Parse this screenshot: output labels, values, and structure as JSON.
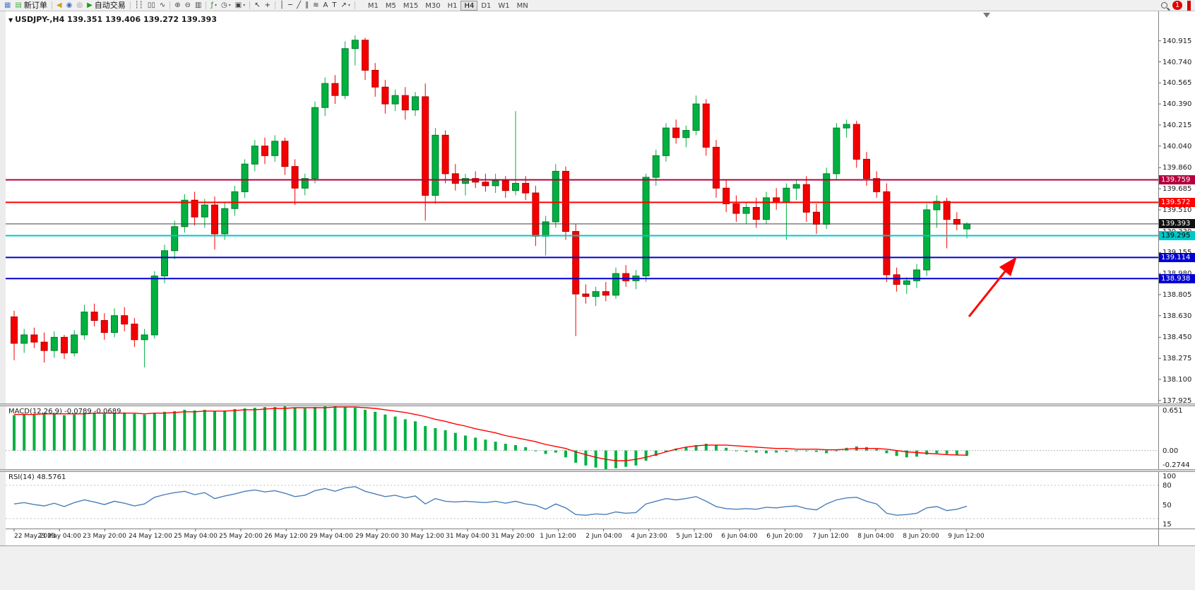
{
  "toolbar": {
    "notification_count": "1",
    "active_timeframe": "H4",
    "timeframes": [
      "M1",
      "M5",
      "M15",
      "M30",
      "H1",
      "H4",
      "D1",
      "W1",
      "MN"
    ],
    "items": [
      {
        "name": "new-chart-icon",
        "glyph": "▦",
        "color": "#4f7fbf"
      },
      {
        "name": "new-order-button",
        "glyph": "▤",
        "color": "#3fae49",
        "label": "新订单"
      },
      {
        "sep": true
      },
      {
        "name": "news-horn-icon",
        "glyph": "◀",
        "color": "#d4a017"
      },
      {
        "name": "community-icon",
        "glyph": "◉",
        "color": "#3a6fc3"
      },
      {
        "name": "support-icon",
        "glyph": "◎",
        "color": "#8a8a8a"
      },
      {
        "name": "auto-trading-button",
        "glyph": "▶",
        "color": "#15a015",
        "label": "自动交易"
      },
      {
        "sep": true
      },
      {
        "name": "bar-chart-icon",
        "glyph": "┆┆",
        "color": "#444444"
      },
      {
        "name": "candlestick-chart-icon",
        "glyph": "▯▯",
        "color": "#444444"
      },
      {
        "name": "line-chart-icon",
        "glyph": "∿",
        "color": "#444444"
      },
      {
        "sep": true
      },
      {
        "name": "zoom-in-icon",
        "glyph": "⊕",
        "color": "#444444"
      },
      {
        "name": "zoom-out-icon",
        "glyph": "⊖",
        "color": "#444444"
      },
      {
        "name": "tile-windows-icon",
        "glyph": "▥",
        "color": "#444444"
      },
      {
        "sep": true
      },
      {
        "name": "indicators-icon",
        "glyph": "ƒ",
        "color": "#2e8b2e",
        "caret": true
      },
      {
        "name": "periods-icon",
        "glyph": "◷",
        "color": "#444444",
        "caret": true
      },
      {
        "name": "template-icon",
        "glyph": "▣",
        "color": "#444444",
        "caret": true
      },
      {
        "sep": true
      },
      {
        "name": "cursor-icon",
        "glyph": "↖",
        "color": "#333333"
      },
      {
        "name": "crosshair-icon",
        "glyph": "+",
        "color": "#333333"
      },
      {
        "sep": true
      },
      {
        "name": "vertical-line-icon",
        "glyph": "│",
        "color": "#333333"
      },
      {
        "name": "horizontal-line-icon",
        "glyph": "─",
        "color": "#333333"
      },
      {
        "name": "trendline-icon",
        "glyph": "╱",
        "color": "#333333"
      },
      {
        "name": "channel-icon",
        "glyph": "∥",
        "color": "#333333"
      },
      {
        "name": "fibonacci-icon",
        "glyph": "≋",
        "color": "#333333"
      },
      {
        "name": "text-icon",
        "glyph": "A",
        "color": "#333333"
      },
      {
        "name": "label-icon",
        "glyph": "T",
        "color": "#333333"
      },
      {
        "name": "arrows-icon",
        "glyph": "↗",
        "color": "#333333",
        "caret": true
      },
      {
        "sep": true
      }
    ]
  },
  "chart": {
    "symbol_caret": "▼",
    "symbol_line": "USDJPY-,H4 139.351 139.406 139.272 139.393",
    "bid": {
      "value": 139.393,
      "label": "139.393",
      "box_color": "#111111",
      "text": "#ffffff",
      "line_color": "#404040"
    },
    "hlines": [
      {
        "value": 139.759,
        "label": "139.759",
        "color": "#b4003c",
        "text": "#ffffff"
      },
      {
        "value": 139.572,
        "label": "139.572",
        "color": "#ff0000",
        "text": "#ffffff"
      },
      {
        "value": 139.295,
        "label": "139.295",
        "color": "#00c8c8",
        "text": "#000000"
      },
      {
        "value": 139.114,
        "label": "139.114",
        "color": "#0000d2",
        "text": "#ffffff"
      },
      {
        "value": 138.938,
        "label": "138.938",
        "color": "#0000d2",
        "text": "#ffffff"
      }
    ],
    "price_axis_labels": [
      "140.915",
      "140.740",
      "140.565",
      "140.390",
      "140.215",
      "140.040",
      "139.860",
      "139.685",
      "139.510",
      "139.330",
      "139.155",
      "138.980",
      "138.805",
      "138.630",
      "138.450",
      "138.275",
      "138.100",
      "137.925"
    ],
    "macd": {
      "title": "MACD(12,26,9) -0.0789 -0.0689",
      "max": 0.651,
      "min": -0.2744,
      "axis": [
        {
          "label": "0.651",
          "value": 0.651
        },
        {
          "label": "0.00",
          "value": 0
        },
        {
          "label": "-0.2744",
          "value": -0.2744
        }
      ]
    },
    "rsi": {
      "title": "RSI(14) 48.5761",
      "max": 100,
      "min": 15,
      "levels": [
        80,
        30
      ],
      "axis": [
        {
          "label": "100",
          "value": 100
        },
        {
          "label": "80",
          "value": 80
        },
        {
          "label": "50",
          "value": 50
        },
        {
          "label": "15",
          "value": 15
        }
      ]
    },
    "annotations": [
      {
        "type": "arrow",
        "color": "#ff0000"
      }
    ]
  },
  "colors": {
    "up": "#00b140",
    "up_edge": "#007a2c",
    "down": "#f40000",
    "down_edge": "#b40000",
    "macd_hist": "#00b140",
    "macd_signal": "#ff0000",
    "rsi_line": "#4a7ebb",
    "axis_text": "#1a1a1a"
  },
  "chart_data": {
    "type": "candlestick",
    "symbol": "USDJPY-",
    "timeframe": "H4",
    "current_bar": {
      "open": 139.351,
      "high": 139.406,
      "low": 139.272,
      "close": 139.393
    },
    "bars": {
      "open": [
        138.62,
        138.4,
        138.47,
        138.41,
        138.34,
        138.45,
        138.32,
        138.47,
        138.66,
        138.59,
        138.49,
        138.63,
        138.56,
        138.43,
        138.47,
        138.96,
        139.17,
        139.37,
        139.59,
        139.45,
        139.55,
        139.31,
        139.52,
        139.66,
        139.89,
        140.04,
        139.96,
        140.08,
        139.87,
        139.69,
        139.77,
        140.36,
        140.56,
        140.46,
        140.85,
        140.92,
        140.67,
        140.53,
        140.39,
        140.46,
        140.34,
        140.45,
        139.63,
        140.13,
        139.81,
        139.73,
        139.77,
        139.74,
        139.71,
        139.75,
        139.67,
        139.73,
        139.65,
        139.29,
        139.41,
        139.83,
        139.33,
        138.81,
        138.79,
        138.83,
        138.8,
        138.98,
        138.92,
        138.96,
        139.78,
        139.96,
        140.19,
        140.11,
        140.17,
        140.39,
        140.03,
        139.69,
        139.56,
        139.48,
        139.53,
        139.43,
        139.61,
        139.57,
        139.69,
        139.72,
        139.49,
        139.39,
        139.81,
        140.19,
        140.22,
        139.93,
        139.77,
        139.66,
        138.97,
        138.89,
        138.92,
        139.01,
        139.51,
        139.58,
        139.43,
        139.351
      ],
      "high": [
        138.67,
        138.52,
        138.53,
        138.49,
        138.5,
        138.47,
        138.51,
        138.72,
        138.73,
        138.65,
        138.69,
        138.7,
        138.61,
        138.52,
        139.0,
        139.22,
        139.42,
        139.64,
        139.66,
        139.6,
        139.62,
        139.57,
        139.71,
        139.93,
        140.09,
        140.11,
        140.13,
        140.11,
        139.93,
        139.81,
        140.41,
        140.61,
        140.63,
        140.91,
        140.96,
        140.94,
        140.73,
        140.59,
        140.51,
        140.53,
        140.49,
        140.56,
        140.19,
        140.17,
        139.89,
        139.81,
        139.83,
        139.81,
        139.81,
        139.79,
        140.33,
        139.79,
        139.71,
        139.46,
        139.89,
        139.87,
        139.39,
        138.89,
        138.87,
        138.91,
        139.03,
        139.05,
        139.01,
        139.81,
        140.01,
        140.23,
        140.26,
        140.21,
        140.46,
        140.43,
        140.09,
        139.76,
        139.63,
        139.57,
        139.61,
        139.66,
        139.69,
        139.73,
        139.76,
        139.79,
        139.56,
        139.86,
        140.23,
        140.26,
        140.25,
        139.99,
        139.83,
        139.73,
        139.03,
        138.95,
        139.06,
        139.56,
        139.63,
        139.61,
        139.49,
        139.406
      ],
      "low": [
        138.26,
        138.32,
        138.36,
        138.24,
        138.28,
        138.27,
        138.29,
        138.43,
        138.54,
        138.43,
        138.45,
        138.5,
        138.37,
        138.2,
        138.44,
        138.9,
        139.1,
        139.32,
        139.38,
        139.36,
        139.18,
        139.26,
        139.46,
        139.61,
        139.83,
        139.89,
        139.91,
        139.8,
        139.55,
        139.63,
        139.73,
        140.29,
        140.39,
        140.43,
        140.71,
        140.59,
        140.45,
        140.31,
        140.33,
        140.26,
        140.29,
        139.42,
        139.56,
        139.73,
        139.67,
        139.63,
        139.69,
        139.66,
        139.65,
        139.61,
        139.63,
        139.59,
        139.21,
        139.13,
        139.36,
        139.26,
        138.46,
        138.73,
        138.71,
        138.75,
        138.77,
        138.87,
        138.85,
        138.91,
        139.71,
        139.91,
        140.06,
        140.03,
        140.13,
        139.96,
        139.61,
        139.49,
        139.41,
        139.39,
        139.36,
        139.39,
        139.51,
        139.26,
        139.59,
        139.41,
        139.31,
        139.35,
        139.76,
        140.11,
        139.86,
        139.71,
        139.61,
        138.91,
        138.83,
        138.81,
        138.86,
        138.96,
        139.36,
        139.19,
        139.34,
        139.272
      ],
      "close": [
        138.4,
        138.47,
        138.41,
        138.34,
        138.45,
        138.32,
        138.47,
        138.66,
        138.59,
        138.49,
        138.63,
        138.56,
        138.43,
        138.47,
        138.96,
        139.17,
        139.37,
        139.59,
        139.45,
        139.55,
        139.31,
        139.52,
        139.66,
        139.89,
        140.04,
        139.96,
        140.08,
        139.87,
        139.69,
        139.77,
        140.36,
        140.56,
        140.46,
        140.85,
        140.92,
        140.67,
        140.53,
        140.39,
        140.46,
        140.34,
        140.45,
        139.63,
        140.13,
        139.81,
        139.73,
        139.77,
        139.74,
        139.71,
        139.75,
        139.67,
        139.73,
        139.65,
        139.29,
        139.41,
        139.83,
        139.33,
        138.81,
        138.79,
        138.83,
        138.8,
        138.98,
        138.92,
        138.96,
        139.78,
        139.96,
        140.19,
        140.11,
        140.17,
        140.39,
        140.03,
        139.69,
        139.56,
        139.48,
        139.53,
        139.43,
        139.61,
        139.57,
        139.69,
        139.72,
        139.49,
        139.39,
        139.81,
        140.19,
        140.22,
        139.93,
        139.77,
        139.66,
        138.97,
        138.89,
        138.92,
        139.01,
        139.51,
        139.58,
        139.43,
        139.39,
        139.393
      ]
    },
    "indicators": {
      "macd": {
        "params": "12,26,9",
        "values_shown": "-0.0789 -0.0689",
        "range": [
          -0.2744,
          0.651
        ],
        "histogram": [
          0.52,
          0.54,
          0.53,
          0.55,
          0.54,
          0.52,
          0.53,
          0.55,
          0.56,
          0.54,
          0.55,
          0.56,
          0.54,
          0.53,
          0.55,
          0.57,
          0.58,
          0.6,
          0.59,
          0.6,
          0.58,
          0.59,
          0.61,
          0.62,
          0.63,
          0.64,
          0.64,
          0.65,
          0.63,
          0.62,
          0.64,
          0.65,
          0.651,
          0.64,
          0.63,
          0.6,
          0.57,
          0.53,
          0.5,
          0.46,
          0.43,
          0.36,
          0.33,
          0.3,
          0.26,
          0.22,
          0.19,
          0.16,
          0.13,
          0.1,
          0.08,
          0.05,
          0.0,
          -0.05,
          -0.03,
          -0.1,
          -0.18,
          -0.22,
          -0.25,
          -0.2744,
          -0.26,
          -0.24,
          -0.22,
          -0.15,
          -0.08,
          -0.02,
          0.03,
          0.05,
          0.08,
          0.1,
          0.08,
          0.04,
          0.0,
          -0.02,
          -0.03,
          -0.04,
          -0.03,
          -0.02,
          -0.01,
          0.0,
          -0.02,
          -0.04,
          0.0,
          0.04,
          0.06,
          0.05,
          0.02,
          -0.04,
          -0.08,
          -0.1,
          -0.09,
          -0.06,
          -0.04,
          -0.05,
          -0.07,
          -0.0789
        ],
        "signal": [
          0.53,
          0.53,
          0.53,
          0.54,
          0.54,
          0.54,
          0.54,
          0.54,
          0.55,
          0.55,
          0.55,
          0.55,
          0.55,
          0.54,
          0.55,
          0.55,
          0.56,
          0.57,
          0.57,
          0.58,
          0.58,
          0.58,
          0.59,
          0.6,
          0.6,
          0.61,
          0.62,
          0.62,
          0.63,
          0.63,
          0.63,
          0.63,
          0.64,
          0.64,
          0.64,
          0.63,
          0.62,
          0.6,
          0.58,
          0.56,
          0.53,
          0.5,
          0.46,
          0.43,
          0.39,
          0.36,
          0.32,
          0.29,
          0.26,
          0.22,
          0.19,
          0.16,
          0.13,
          0.09,
          0.06,
          0.03,
          -0.02,
          -0.06,
          -0.1,
          -0.13,
          -0.15,
          -0.15,
          -0.13,
          -0.1,
          -0.06,
          -0.02,
          0.02,
          0.05,
          0.07,
          0.08,
          0.08,
          0.08,
          0.07,
          0.06,
          0.05,
          0.04,
          0.03,
          0.03,
          0.02,
          0.02,
          0.02,
          0.01,
          0.01,
          0.02,
          0.03,
          0.03,
          0.03,
          0.02,
          0.0,
          -0.02,
          -0.03,
          -0.04,
          -0.05,
          -0.06,
          -0.065,
          -0.0689
        ]
      },
      "rsi": {
        "params": "14",
        "value_shown": "48.5761",
        "range": [
          15,
          100
        ],
        "values": [
          52,
          54,
          51,
          49,
          53,
          48,
          54,
          58,
          55,
          51,
          56,
          53,
          49,
          52,
          62,
          66,
          69,
          71,
          66,
          69,
          60,
          64,
          67,
          71,
          73,
          70,
          72,
          68,
          63,
          65,
          72,
          75,
          71,
          76,
          78,
          71,
          67,
          63,
          65,
          61,
          64,
          52,
          60,
          56,
          55,
          56,
          55,
          54,
          56,
          53,
          56,
          52,
          50,
          44,
          52,
          46,
          36,
          35,
          37,
          36,
          40,
          38,
          39,
          52,
          56,
          60,
          58,
          60,
          63,
          56,
          48,
          45,
          44,
          45,
          44,
          47,
          46,
          48,
          49,
          45,
          43,
          52,
          58,
          61,
          62,
          56,
          52,
          38,
          35,
          36,
          38,
          46,
          48,
          42,
          44,
          48.58
        ]
      }
    },
    "time_labels": [
      "22 May 2023",
      "23 May 04:00",
      "23 May 20:00",
      "24 May 12:00",
      "25 May 04:00",
      "25 May 20:00",
      "26 May 12:00",
      "29 May 04:00",
      "29 May 20:00",
      "30 May 12:00",
      "31 May 04:00",
      "31 May 20:00",
      "1 Jun 12:00",
      "2 Jun 04:00",
      "4 Jun 23:00",
      "5 Jun 12:00",
      "6 Jun 04:00",
      "6 Jun 20:00",
      "7 Jun 12:00",
      "8 Jun 04:00",
      "8 Jun 20:00",
      "9 Jun 12:00"
    ]
  }
}
